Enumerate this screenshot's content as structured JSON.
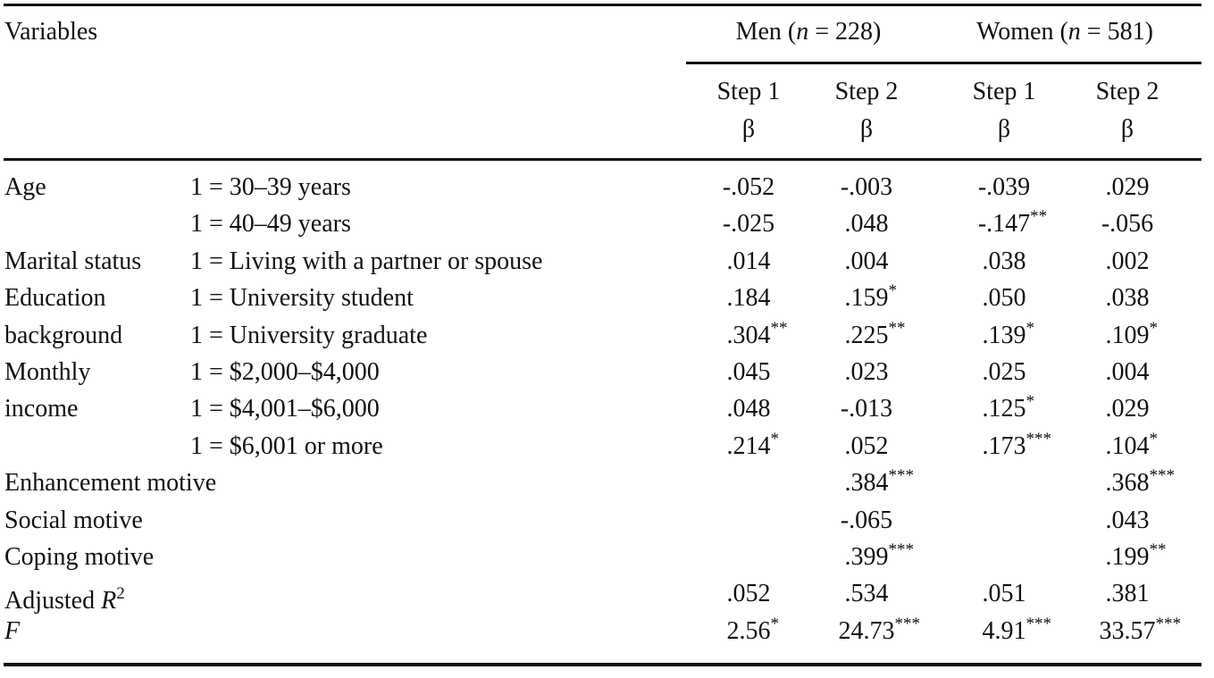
{
  "table": {
    "header": {
      "variables": "Variables",
      "groups": [
        {
          "parts": [
            {
              "text": "Men ("
            },
            {
              "text": "n",
              "italic": true
            },
            {
              "text": " = 228)"
            }
          ]
        },
        {
          "parts": [
            {
              "text": "Women ("
            },
            {
              "text": "n",
              "italic": true
            },
            {
              "text": " = 581)"
            }
          ]
        }
      ],
      "columns": [
        {
          "step": "Step 1",
          "stat": "β"
        },
        {
          "step": "Step 2",
          "stat": "β"
        },
        {
          "step": "Step 1",
          "stat": "β"
        },
        {
          "step": "Step 2",
          "stat": "β"
        }
      ]
    },
    "rows": [
      {
        "variable": "Age",
        "level": "1 = 30–39 years",
        "cells": [
          {
            "value": "-.052"
          },
          {
            "value": "-.003"
          },
          {
            "value": "-.039"
          },
          {
            "value": ".029"
          }
        ]
      },
      {
        "level": "1 = 40–49 years",
        "cells": [
          {
            "value": "-.025"
          },
          {
            "value": ".048"
          },
          {
            "value": "-.147",
            "sig": "**"
          },
          {
            "value": "-.056"
          }
        ]
      },
      {
        "variable": "Marital status",
        "level": "1 = Living with a partner or spouse",
        "cells": [
          {
            "value": ".014"
          },
          {
            "value": ".004"
          },
          {
            "value": ".038"
          },
          {
            "value": ".002"
          }
        ]
      },
      {
        "variable": "Education",
        "level": "1 = University student",
        "cells": [
          {
            "value": ".184"
          },
          {
            "value": ".159",
            "sig": "*"
          },
          {
            "value": ".050"
          },
          {
            "value": ".038"
          }
        ]
      },
      {
        "variable": "background",
        "level": "1 = University graduate",
        "cells": [
          {
            "value": ".304",
            "sig": "**"
          },
          {
            "value": ".225",
            "sig": "**"
          },
          {
            "value": ".139",
            "sig": "*"
          },
          {
            "value": ".109",
            "sig": "*"
          }
        ]
      },
      {
        "variable": "Monthly",
        "level": "1 = $2,000–$4,000",
        "cells": [
          {
            "value": ".045"
          },
          {
            "value": ".023"
          },
          {
            "value": ".025"
          },
          {
            "value": ".004"
          }
        ]
      },
      {
        "variable": "income",
        "level": "1 = $4,001–$6,000",
        "cells": [
          {
            "value": ".048"
          },
          {
            "value": "-.013"
          },
          {
            "value": ".125",
            "sig": "*"
          },
          {
            "value": ".029"
          }
        ]
      },
      {
        "level": "1 = $6,001 or more",
        "cells": [
          {
            "value": ".214",
            "sig": "*"
          },
          {
            "value": ".052"
          },
          {
            "value": ".173",
            "sig": "***"
          },
          {
            "value": ".104",
            "sig": "*"
          }
        ]
      },
      {
        "variable": "Enhancement motive",
        "cells": [
          null,
          {
            "value": ".384",
            "sig": "***"
          },
          null,
          {
            "value": ".368",
            "sig": "***"
          }
        ]
      },
      {
        "variable": "Social motive",
        "cells": [
          null,
          {
            "value": "-.065"
          },
          null,
          {
            "value": ".043"
          }
        ]
      },
      {
        "variable": "Coping motive",
        "cells": [
          null,
          {
            "value": ".399",
            "sig": "***"
          },
          null,
          {
            "value": ".199",
            "sig": "**"
          }
        ]
      },
      {
        "variable": [
          {
            "text": "Adjusted "
          },
          {
            "text": "R",
            "italic": true
          },
          {
            "text": "2",
            "sup": true
          }
        ],
        "cells": [
          {
            "value": ".052"
          },
          {
            "value": ".534"
          },
          {
            "value": ".051"
          },
          {
            "value": ".381"
          }
        ]
      },
      {
        "variable": [
          {
            "text": "F",
            "italic": true
          }
        ],
        "cells": [
          {
            "value": "2.56",
            "sig": "*"
          },
          {
            "value": "24.73",
            "sig": "***"
          },
          {
            "value": "4.91",
            "sig": "***"
          },
          {
            "value": "33.57",
            "sig": "***"
          }
        ]
      }
    ]
  }
}
